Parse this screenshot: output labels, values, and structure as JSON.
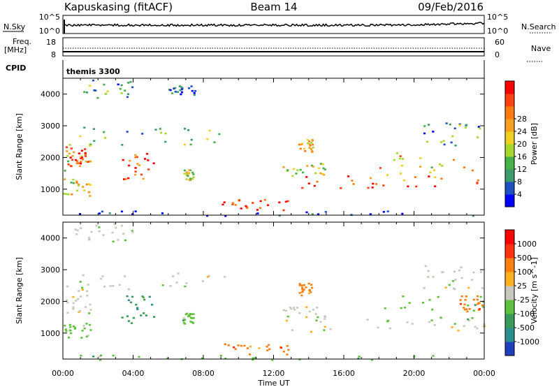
{
  "header": {
    "station": "Kapuskasing (fitACF)",
    "beam": "Beam 14",
    "date": "09/Feb/2016"
  },
  "strips": {
    "nsky_label": "N.Sky",
    "nsearch_label": "N.Search",
    "nsky_ticks": [
      "10^5",
      "10^0"
    ],
    "nsearch_ticks": [
      "10^5",
      "10^0"
    ],
    "freq_label": "Freq.",
    "freq_unit": "[MHz]",
    "freq_ticks": [
      "18",
      "8"
    ],
    "nave_label": "Nave",
    "nave_ticks": [
      "60",
      "0"
    ],
    "cpid_label": "CPID",
    "cpid_value": "themis 3300"
  },
  "chart_data": [
    {
      "type": "heatmap",
      "name": "power",
      "ylabel": "Slant Range [km]",
      "xlabel": "Time UT",
      "x_ticks": [
        "00:00",
        "04:00",
        "08:00",
        "12:00",
        "16:00",
        "20:00",
        "00:00"
      ],
      "xlim_hours": [
        0,
        24
      ],
      "ylim": [
        180,
        4500
      ],
      "y_ticks": [
        1000,
        2000,
        3000,
        4000
      ],
      "colorbar": {
        "label": "Power [dB]",
        "ticks": [
          4,
          8,
          12,
          16,
          20,
          24,
          28
        ],
        "colors": [
          "#0000ff",
          "#2050c0",
          "#3d9a6a",
          "#48b048",
          "#a8d830",
          "#f0d020",
          "#f5a020",
          "#ff7a10",
          "#ff4010",
          "#ff0000"
        ]
      },
      "regions": [
        {
          "t0": 0.0,
          "t1": 1.6,
          "r0": 1600,
          "r1": 2500,
          "level": 0.6
        },
        {
          "t0": 0.2,
          "t1": 1.5,
          "r0": 1800,
          "r1": 2300,
          "level": 0.9
        },
        {
          "t0": 0.0,
          "t1": 1.6,
          "r0": 800,
          "r1": 1400,
          "level": 0.55
        },
        {
          "t0": 0.9,
          "t1": 9.5,
          "r0": 2400,
          "r1": 3000,
          "level": 0.35
        },
        {
          "t0": 3.3,
          "t1": 5.2,
          "r0": 1300,
          "r1": 2200,
          "level": 0.85
        },
        {
          "t0": 6.8,
          "t1": 7.4,
          "r0": 1300,
          "r1": 1650,
          "level": 0.5
        },
        {
          "t0": 9.0,
          "t1": 12.8,
          "r0": 350,
          "r1": 700,
          "level": 0.85
        },
        {
          "t0": 12.8,
          "t1": 24.0,
          "r0": 1050,
          "r1": 1450,
          "level": 0.9
        },
        {
          "t0": 12.5,
          "t1": 15.0,
          "r0": 1400,
          "r1": 1850,
          "level": 0.5
        },
        {
          "t0": 13.4,
          "t1": 14.2,
          "r0": 2200,
          "r1": 2600,
          "level": 0.6
        },
        {
          "t0": 18.0,
          "t1": 24.0,
          "r0": 1300,
          "r1": 2200,
          "level": 0.6
        },
        {
          "t0": 20.5,
          "t1": 24.0,
          "r0": 2400,
          "r1": 3200,
          "level": 0.3
        },
        {
          "t0": 0.5,
          "t1": 4.0,
          "r0": 3900,
          "r1": 4500,
          "level": 0.3
        },
        {
          "t0": 6.0,
          "t1": 7.5,
          "r0": 4000,
          "r1": 4350,
          "level": 0.15
        },
        {
          "t0": 0.0,
          "t1": 24.0,
          "r0": 180,
          "r1": 330,
          "level": 0.1
        }
      ]
    },
    {
      "type": "heatmap",
      "name": "velocity",
      "ylabel": "Slant Range [km]",
      "xlabel": "Time UT",
      "x_ticks": [
        "00:00",
        "04:00",
        "08:00",
        "12:00",
        "16:00",
        "20:00",
        "00:00"
      ],
      "xlim_hours": [
        0,
        24
      ],
      "ylim": [
        180,
        4500
      ],
      "y_ticks": [
        1000,
        2000,
        3000,
        4000
      ],
      "colorbar": {
        "label": "Velocity [m s^-1]",
        "ticks": [
          "1000",
          "500",
          "100",
          "25",
          "-25",
          "-100",
          "-500",
          "-1000"
        ],
        "colors": [
          "#1f3fbf",
          "#2c8f8f",
          "#3a9a5a",
          "#60c040",
          "#c8c8c0",
          "#ffb020",
          "#ff8010",
          "#ff3010",
          "#ff0000"
        ]
      },
      "regions": [
        {
          "t0": 0.0,
          "t1": 1.6,
          "r0": 1600,
          "r1": 2500,
          "cls": 4
        },
        {
          "t0": 0.9,
          "t1": 9.5,
          "r0": 2400,
          "r1": 3000,
          "cls": 4
        },
        {
          "t0": 0.0,
          "t1": 1.6,
          "r0": 800,
          "r1": 1400,
          "cls": 3
        },
        {
          "t0": 3.3,
          "t1": 5.2,
          "r0": 1300,
          "r1": 2200,
          "cls": 2
        },
        {
          "t0": 6.8,
          "t1": 7.4,
          "r0": 1300,
          "r1": 1650,
          "cls": 3
        },
        {
          "t0": 9.0,
          "t1": 12.8,
          "r0": 350,
          "r1": 700,
          "cls": 6
        },
        {
          "t0": 12.8,
          "t1": 24.0,
          "r0": 1050,
          "r1": 1450,
          "cls": 4
        },
        {
          "t0": 12.5,
          "t1": 15.0,
          "r0": 1400,
          "r1": 1850,
          "cls": 4
        },
        {
          "t0": 13.4,
          "t1": 14.2,
          "r0": 2200,
          "r1": 2600,
          "cls": 6
        },
        {
          "t0": 18.0,
          "t1": 24.0,
          "r0": 1300,
          "r1": 2200,
          "cls": 3
        },
        {
          "t0": 22.5,
          "t1": 24.0,
          "r0": 1700,
          "r1": 2200,
          "cls": 6
        },
        {
          "t0": 20.5,
          "t1": 24.0,
          "r0": 2400,
          "r1": 3200,
          "cls": 4
        },
        {
          "t0": 0.5,
          "t1": 4.0,
          "r0": 3900,
          "r1": 4500,
          "cls": 4
        },
        {
          "t0": 0.0,
          "t1": 24.0,
          "r0": 180,
          "r1": 330,
          "cls": 3
        }
      ]
    }
  ]
}
